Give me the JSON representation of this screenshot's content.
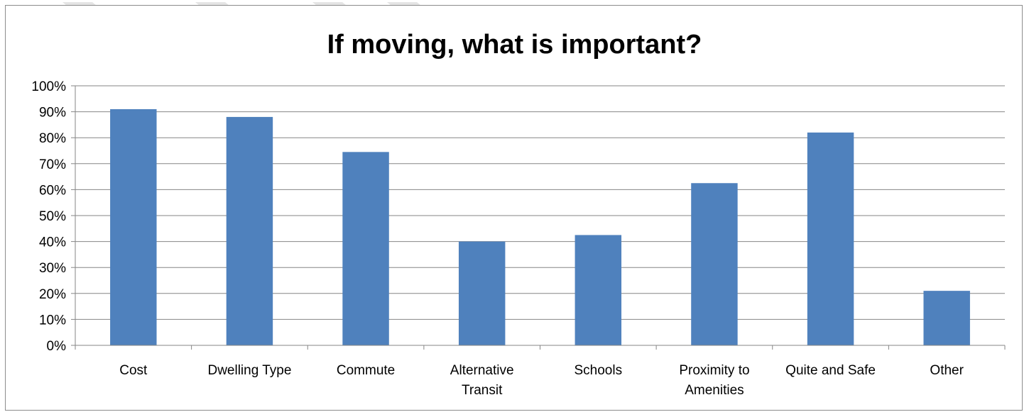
{
  "chart_data": {
    "type": "bar",
    "title": "If moving, what is important?",
    "xlabel": "",
    "ylabel": "",
    "categories": [
      [
        "Cost"
      ],
      [
        "Dwelling Type"
      ],
      [
        "Commute"
      ],
      [
        "Alternative",
        "Transit"
      ],
      [
        "Schools"
      ],
      [
        "Proximity to",
        "Amenities"
      ],
      [
        "Quite and Safe"
      ],
      [
        "Other"
      ]
    ],
    "values": [
      91,
      88,
      74.5,
      40,
      42.5,
      62.5,
      82,
      21
    ],
    "ylim": [
      0,
      100
    ],
    "y_ticks": [
      "0%",
      "10%",
      "20%",
      "30%",
      "40%",
      "50%",
      "60%",
      "70%",
      "80%",
      "90%",
      "100%"
    ],
    "grid": true,
    "legend": "none",
    "colors": {
      "bar": "#4f81bd",
      "gridline": "#868686",
      "axis": "#868686"
    }
  }
}
